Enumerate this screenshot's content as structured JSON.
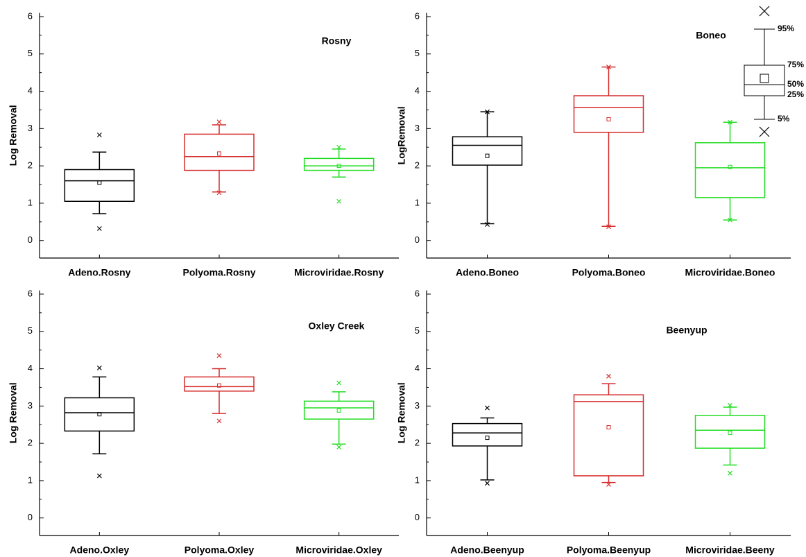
{
  "chart_data": [
    {
      "type": "box",
      "title": "Rosny",
      "ylabel": "Log Removal",
      "categories": [
        "Adeno.Rosny",
        "Polyoma.Rosny",
        "Microviridae.Rosny"
      ],
      "ylim": [
        -0.47,
        6.1
      ],
      "yticks": [
        0,
        1,
        2,
        3,
        4,
        5,
        6
      ],
      "boxes": [
        {
          "color": "#000000",
          "whisker_low": 0.72,
          "q1": 1.05,
          "median": 1.6,
          "q3": 1.9,
          "whisker_high": 2.37,
          "mean": 1.55,
          "outliers": [
            2.83,
            0.32
          ]
        },
        {
          "color": "#d62a2a",
          "whisker_low": 1.3,
          "q1": 1.88,
          "median": 2.25,
          "q3": 2.85,
          "whisker_high": 3.1,
          "mean": 2.33,
          "outliers": [
            3.18,
            1.28
          ]
        },
        {
          "color": "#22dd22",
          "whisker_low": 1.7,
          "q1": 1.88,
          "median": 2.0,
          "q3": 2.2,
          "whisker_high": 2.45,
          "mean": 2.0,
          "outliers": [
            2.5,
            1.05
          ]
        }
      ]
    },
    {
      "type": "box",
      "title": "Boneo",
      "ylabel": "LogRemoval",
      "categories": [
        "Adeno.Boneo",
        "Polyoma.Boneo",
        "Microviridae.Boneo"
      ],
      "ylim": [
        -0.47,
        6.1
      ],
      "yticks": [
        0,
        1,
        2,
        3,
        4,
        5,
        6
      ],
      "key_labels": [
        "95%",
        "75%",
        "50%",
        "25%",
        "5%"
      ],
      "boxes": [
        {
          "color": "#000000",
          "whisker_low": 0.45,
          "q1": 2.02,
          "median": 2.55,
          "q3": 2.78,
          "whisker_high": 3.45,
          "mean": 2.27,
          "outliers": [
            3.45,
            0.43
          ]
        },
        {
          "color": "#d62a2a",
          "whisker_low": 0.38,
          "q1": 2.9,
          "median": 3.57,
          "q3": 3.88,
          "whisker_high": 4.65,
          "mean": 3.25,
          "outliers": [
            4.65,
            0.37
          ]
        },
        {
          "color": "#22dd22",
          "whisker_low": 0.55,
          "q1": 1.15,
          "median": 1.95,
          "q3": 2.62,
          "whisker_high": 3.17,
          "mean": 1.97,
          "outliers": [
            3.17,
            0.55
          ]
        }
      ]
    },
    {
      "type": "box",
      "title": "Oxley Creek",
      "ylabel": "Log Removal",
      "categories": [
        "Adeno.Oxley",
        "Polyoma.Oxley",
        "Microviridae.Oxley"
      ],
      "ylim": [
        -0.47,
        6.1
      ],
      "yticks": [
        0,
        1,
        2,
        3,
        4,
        5,
        6
      ],
      "boxes": [
        {
          "color": "#000000",
          "whisker_low": 1.72,
          "q1": 2.33,
          "median": 2.82,
          "q3": 3.22,
          "whisker_high": 3.78,
          "mean": 2.78,
          "outliers": [
            4.02,
            1.13
          ]
        },
        {
          "color": "#d62a2a",
          "whisker_low": 2.8,
          "q1": 3.4,
          "median": 3.52,
          "q3": 3.78,
          "whisker_high": 4.0,
          "mean": 3.55,
          "outliers": [
            4.35,
            2.6
          ]
        },
        {
          "color": "#22dd22",
          "whisker_low": 1.98,
          "q1": 2.65,
          "median": 2.95,
          "q3": 3.13,
          "whisker_high": 3.38,
          "mean": 2.88,
          "outliers": [
            3.62,
            1.9
          ]
        }
      ]
    },
    {
      "type": "box",
      "title": "Beenyup",
      "ylabel": "Log Removal",
      "categories": [
        "Adeno.Beenyup",
        "Polyoma.Beenyup",
        "Microviridae.Beeny"
      ],
      "ylim": [
        -0.47,
        6.1
      ],
      "yticks": [
        0,
        1,
        2,
        3,
        4,
        5,
        6
      ],
      "boxes": [
        {
          "color": "#000000",
          "whisker_low": 1.02,
          "q1": 1.93,
          "median": 2.28,
          "q3": 2.53,
          "whisker_high": 2.68,
          "mean": 2.15,
          "outliers": [
            2.95,
            0.93
          ]
        },
        {
          "color": "#d62a2a",
          "whisker_low": 0.95,
          "q1": 1.13,
          "median": 3.12,
          "q3": 3.3,
          "whisker_high": 3.6,
          "mean": 2.43,
          "outliers": [
            3.8,
            0.9
          ]
        },
        {
          "color": "#22dd22",
          "whisker_low": 1.42,
          "q1": 1.87,
          "median": 2.35,
          "q3": 2.75,
          "whisker_high": 2.97,
          "mean": 2.28,
          "outliers": [
            3.02,
            1.2
          ]
        }
      ]
    }
  ]
}
